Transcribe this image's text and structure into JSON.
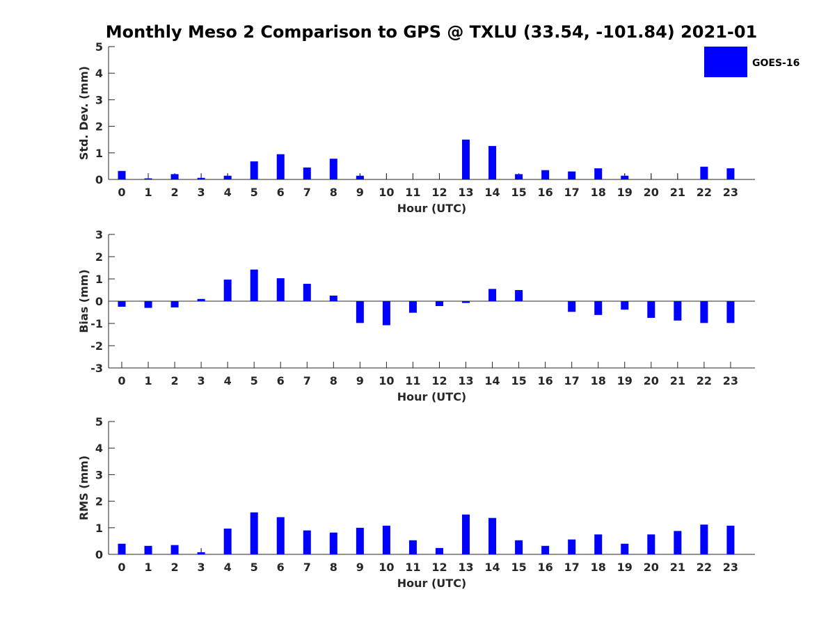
{
  "title": "Monthly Meso 2 Comparison to GPS @ TXLU (33.54, -101.84) 2021-01",
  "legend": {
    "label": "GOES-16",
    "placement": "top-right",
    "color": "#0000ff"
  },
  "chart_data": [
    {
      "type": "bar",
      "panel": "std",
      "xlabel": "Hour (UTC)",
      "ylabel": "Std. Dev. (mm)",
      "ylim": [
        0,
        5
      ],
      "yticks": [
        0,
        1,
        2,
        3,
        4,
        5
      ],
      "grid": false,
      "categories": [
        "0",
        "1",
        "2",
        "3",
        "4",
        "5",
        "6",
        "7",
        "8",
        "9",
        "10",
        "11",
        "12",
        "13",
        "14",
        "15",
        "16",
        "17",
        "18",
        "19",
        "20",
        "21",
        "22",
        "23"
      ],
      "series": [
        {
          "name": "GOES-16",
          "color": "#0000ff",
          "values": [
            0.32,
            0.04,
            0.2,
            0.06,
            0.14,
            0.68,
            0.95,
            0.45,
            0.78,
            0.14,
            null,
            null,
            null,
            1.5,
            1.26,
            0.2,
            0.35,
            0.3,
            0.42,
            0.14,
            null,
            null,
            0.48,
            0.42
          ]
        }
      ],
      "errorbars": [
        0.22,
        0.22,
        0.22,
        0.22,
        0.22,
        0,
        0,
        0,
        0,
        0.22,
        0.22,
        0.22,
        0.22,
        0,
        0,
        0,
        0,
        0,
        0,
        0.22,
        0.22,
        0.22,
        0,
        0
      ]
    },
    {
      "type": "bar",
      "panel": "bias",
      "xlabel": "Hour (UTC)",
      "ylabel": "Bias (mm)",
      "ylim": [
        -3,
        3
      ],
      "yticks": [
        -3,
        -2,
        -1,
        0,
        1,
        2,
        3
      ],
      "grid": false,
      "zero_line": true,
      "categories": [
        "0",
        "1",
        "2",
        "3",
        "4",
        "5",
        "6",
        "7",
        "8",
        "9",
        "10",
        "11",
        "12",
        "13",
        "14",
        "15",
        "16",
        "17",
        "18",
        "19",
        "20",
        "21",
        "22",
        "23"
      ],
      "series": [
        {
          "name": "GOES-16",
          "color": "#0000ff",
          "values": [
            -0.25,
            -0.3,
            -0.28,
            0.1,
            0.97,
            1.42,
            1.03,
            0.78,
            0.25,
            -0.98,
            -1.08,
            -0.52,
            -0.22,
            -0.08,
            0.55,
            0.5,
            0,
            -0.48,
            -0.62,
            -0.38,
            -0.75,
            -0.87,
            -0.98,
            -0.98
          ]
        }
      ]
    },
    {
      "type": "bar",
      "panel": "rms",
      "xlabel": "Hour (UTC)",
      "ylabel": "RMS (mm)",
      "ylim": [
        0,
        5
      ],
      "yticks": [
        0,
        1,
        2,
        3,
        4,
        5
      ],
      "grid": false,
      "categories": [
        "0",
        "1",
        "2",
        "3",
        "4",
        "5",
        "6",
        "7",
        "8",
        "9",
        "10",
        "11",
        "12",
        "13",
        "14",
        "15",
        "16",
        "17",
        "18",
        "19",
        "20",
        "21",
        "22",
        "23"
      ],
      "series": [
        {
          "name": "GOES-16",
          "color": "#0000ff",
          "values": [
            0.4,
            0.32,
            0.35,
            0.08,
            0.97,
            1.58,
            1.4,
            0.9,
            0.82,
            1.0,
            1.08,
            0.53,
            0.24,
            1.5,
            1.37,
            0.53,
            0.32,
            0.56,
            0.75,
            0.4,
            0.75,
            0.88,
            1.12,
            1.08
          ]
        }
      ],
      "errorbars": [
        0,
        0,
        0,
        0.22,
        0,
        0,
        0,
        0,
        0,
        0,
        0,
        0,
        0,
        0,
        0,
        0,
        0,
        0,
        0,
        0,
        0,
        0,
        0,
        0
      ]
    }
  ]
}
